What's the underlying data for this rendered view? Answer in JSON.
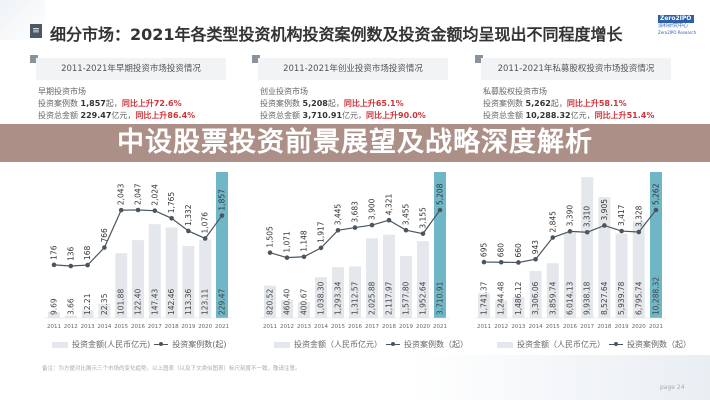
{
  "title": "细分市场：2021年各类型投资机构投资案例数及投资金额均呈现出不同程度增长",
  "logo": {
    "brand": "Zero2IPO",
    "name": "清科研究中心",
    "sub": "Zero2IPO Research"
  },
  "banner": "中设股票投资前景展望及战略深度解析",
  "note": "备注：为方便对比展示三个市场的变化趋势，以上图表（以及下文类似图表）标尺刻度不一致，敬请注意。",
  "page": "page 24",
  "colors": {
    "bar": "#e4e8ec",
    "bar_highlight": "#6fb6c6",
    "line": "#4a5560",
    "red": "#d0333a",
    "banner": "#a08076"
  },
  "panels": [
    {
      "heading": "2011-2021年早期投资市场投资情况",
      "market": "早期投资市场",
      "cases_label": "投资案例数",
      "cases": "1,857",
      "cases_unit": "起，",
      "cases_growth": "同比上升72.6%",
      "amount_label": "投资总金额",
      "amount": "229.47",
      "amount_unit": "亿元，",
      "amount_growth": "同比上升86.4%",
      "legend_bar": "投资金额(人民币亿元)",
      "legend_line": "投资案例数(起)"
    },
    {
      "heading": "2011-2021年创业投资市场投资情况",
      "market": "创业投资市场",
      "cases_label": "投资案例数",
      "cases": "5,208",
      "cases_unit": "起，",
      "cases_growth": "同比上升65.1%",
      "amount_label": "投资总金额",
      "amount": "3,710.91",
      "amount_unit": "亿元，",
      "amount_growth": "同比上升90.0%",
      "legend_bar": "投资金额（人民币亿元）",
      "legend_line": "投资案例数（起）"
    },
    {
      "heading": "2011-2021年私募股权投资市场投资情况",
      "market": "私募股权投资市场",
      "cases_label": "投资案例数",
      "cases": "5,262",
      "cases_unit": "起，",
      "cases_growth": "同比上升58.1%",
      "amount_label": "投资总金额",
      "amount": "10,288.32",
      "amount_unit": "亿元，",
      "amount_growth": "同比上升51.4%",
      "legend_bar": "投资金额（人民币亿元）",
      "legend_line": "投资案例数（起）"
    }
  ],
  "chart_data": [
    {
      "type": "bar+line",
      "categories": [
        "2011",
        "2012",
        "2013",
        "2014",
        "2015",
        "2016",
        "2017",
        "2018",
        "2019",
        "2020",
        "2021"
      ],
      "series": [
        {
          "name": "投资金额(人民币亿元)",
          "type": "bar",
          "values": [
            9.69,
            3.66,
            12.21,
            22.35,
            101.88,
            122.4,
            147.43,
            142.46,
            113.36,
            123.11,
            229.47
          ]
        },
        {
          "name": "投资案例数(起)",
          "type": "line",
          "values": [
            176,
            136,
            168,
            766,
            2043,
            2047,
            2024,
            1765,
            1332,
            1076,
            1857
          ]
        }
      ]
    },
    {
      "type": "bar+line",
      "categories": [
        "2011",
        "2012",
        "2013",
        "2014",
        "2015",
        "2016",
        "2017",
        "2018",
        "2019",
        "2020",
        "2021"
      ],
      "series": [
        {
          "name": "投资金额（人民币亿元）",
          "type": "bar",
          "values": [
            820.52,
            460.4,
            400.67,
            1038.3,
            1293.34,
            1312.57,
            2025.88,
            2117.97,
            1577.8,
            1952.64,
            3710.91
          ]
        },
        {
          "name": "投资案例数（起）",
          "type": "line",
          "values": [
            1505,
            1071,
            1148,
            1917,
            3445,
            3683,
            3900,
            4321,
            3455,
            3155,
            5208
          ]
        }
      ]
    },
    {
      "type": "bar+line",
      "categories": [
        "2011",
        "2012",
        "2013",
        "2014",
        "2015",
        "2016",
        "2017",
        "2018",
        "2019",
        "2020",
        "2021"
      ],
      "series": [
        {
          "name": "投资金额（人民币亿元）",
          "type": "bar",
          "values": [
            1741.37,
            1244.48,
            1486.12,
            3306.06,
            3859.74,
            6014.13,
            9938.18,
            8527.64,
            5939.78,
            6795.74,
            10288.32
          ]
        },
        {
          "name": "投资案例数（起）",
          "type": "line",
          "values": [
            695,
            680,
            660,
            943,
            2845,
            3390,
            3310,
            3905,
            3417,
            3328,
            5262
          ]
        }
      ]
    }
  ]
}
